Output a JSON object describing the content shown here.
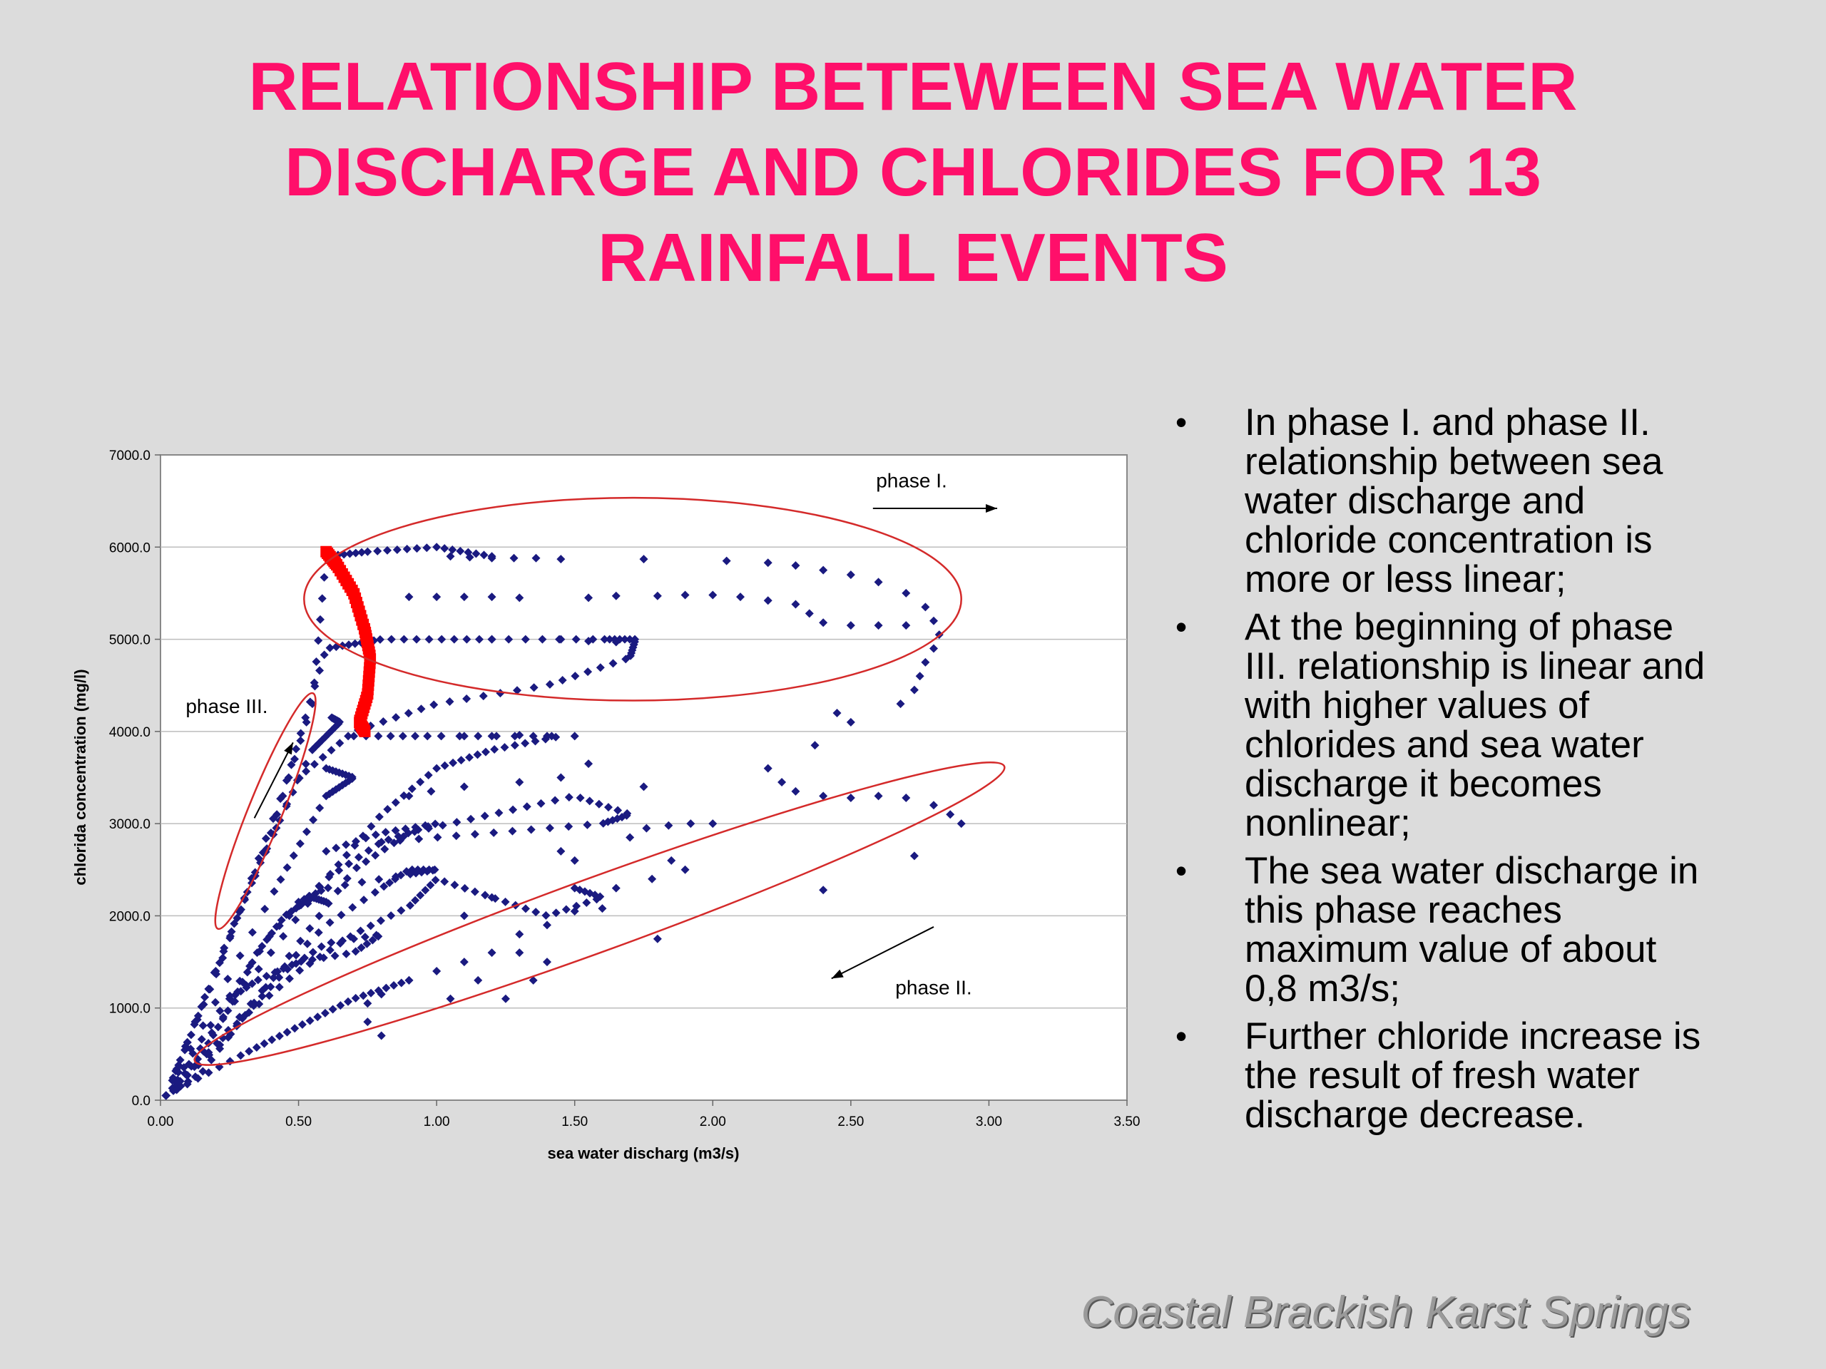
{
  "slide": {
    "title_lines": [
      "RELATIONSHIP BETEWEEN SEA WATER",
      "DISCHARGE AND CHLORIDES FOR 13",
      "RAINFALL EVENTS"
    ],
    "bullets": [
      "In phase I. and phase II. relationship between sea water discharge and chloride concentration is more or less linear;",
      "At the beginning of phase III. relationship is linear and with higher values of chlorides and sea water discharge it becomes nonlinear;",
      "The sea water discharge in this phase reaches maximum value of about 0,8 m3/s;",
      "Further chloride increase is the result of fresh water discharge decrease."
    ],
    "footer": "Coastal Brackish Karst Springs",
    "colors": {
      "title": "#ff0f6a",
      "points": "#1a1a80",
      "highlight": "#ff0000",
      "ellipse": "#d42a2a"
    }
  },
  "chart_data": {
    "type": "scatter",
    "title": "",
    "xlabel": "sea water discharg (m3/s)",
    "ylabel": "chlorida concentration (mg/l)",
    "xlim": [
      0,
      3.5
    ],
    "ylim": [
      0,
      7000
    ],
    "xticks": [
      "0.00",
      "0.50",
      "1.00",
      "1.50",
      "2.00",
      "2.50",
      "3.00",
      "3.50"
    ],
    "yticks": [
      "0.0",
      "1000.0",
      "2000.0",
      "3000.0",
      "4000.0",
      "5000.0",
      "6000.0",
      "7000.0"
    ],
    "grid": "horizontal",
    "annotations": [
      {
        "text": "phase I.",
        "x": 2.72,
        "y": 6650
      },
      {
        "text": "phase II.",
        "x": 2.8,
        "y": 1150
      },
      {
        "text": "phase III.",
        "x": 0.24,
        "y": 4200
      }
    ],
    "arrows": [
      {
        "from": [
          2.58,
          6420
        ],
        "to": [
          3.03,
          6420
        ]
      },
      {
        "from": [
          2.8,
          1880
        ],
        "to": [
          2.43,
          1320
        ]
      },
      {
        "from": [
          0.34,
          3060
        ],
        "to": [
          0.48,
          3880
        ]
      }
    ],
    "ellipses": [
      {
        "center": [
          1.71,
          5435
        ],
        "rx": 1.19,
        "ry": 1100,
        "angle": 0
      },
      {
        "center": [
          1.59,
          2023
        ],
        "rx": 1.56,
        "ry": 400,
        "angle": -20
      },
      {
        "center": [
          0.38,
          3137
        ],
        "rx": 0.46,
        "ry": 185,
        "angle": -68
      }
    ],
    "series": [
      {
        "name": "",
        "color": "#1a1a80",
        "paths": [
          {
            "points": [
              [
                0.02,
                50
              ],
              [
                0.2,
                1400
              ],
              [
                0.4,
                2900
              ],
              [
                0.55,
                4300
              ],
              [
                0.6,
                5900
              ],
              [
                0.75,
                5950
              ],
              [
                1.0,
                6000
              ],
              [
                1.2,
                5900
              ]
            ],
            "n": 50
          },
          {
            "points": [
              [
                0.02,
                50
              ],
              [
                0.22,
                1500
              ],
              [
                0.45,
                3400
              ],
              [
                0.6,
                4900
              ],
              [
                0.8,
                5000
              ],
              [
                1.2,
                5000
              ]
            ],
            "n": 45
          },
          {
            "points": [
              [
                0.02,
                50
              ],
              [
                0.25,
                1800
              ],
              [
                0.5,
                3500
              ],
              [
                0.7,
                4000
              ],
              [
                1.0,
                4300
              ],
              [
                1.4,
                4500
              ],
              [
                1.7,
                4800
              ],
              [
                1.72,
                5000
              ],
              [
                1.6,
                5000
              ],
              [
                1.2,
                5000
              ]
            ],
            "n": 60
          },
          {
            "points": [
              [
                0.02,
                50
              ],
              [
                0.3,
                1200
              ],
              [
                0.6,
                2400
              ],
              [
                0.8,
                3100
              ],
              [
                1.0,
                3600
              ],
              [
                1.2,
                3800
              ],
              [
                1.45,
                3950
              ],
              [
                1.0,
                3950
              ],
              [
                0.7,
                3950
              ]
            ],
            "n": 55
          },
          {
            "points": [
              [
                0.02,
                50
              ],
              [
                0.25,
                700
              ],
              [
                0.5,
                1700
              ],
              [
                0.7,
                2500
              ],
              [
                0.9,
                2900
              ],
              [
                1.2,
                3100
              ],
              [
                1.5,
                3300
              ],
              [
                1.7,
                3100
              ],
              [
                1.6,
                3000
              ],
              [
                1.2,
                2900
              ],
              [
                0.8,
                2800
              ]
            ],
            "n": 60
          },
          {
            "points": [
              [
                0.02,
                50
              ],
              [
                0.2,
                600
              ],
              [
                0.4,
                1300
              ],
              [
                0.6,
                1900
              ],
              [
                0.8,
                2300
              ],
              [
                0.9,
                2500
              ],
              [
                1.0,
                2500
              ],
              [
                0.9,
                2450
              ],
              [
                0.6,
                2300
              ],
              [
                0.5,
                2150
              ]
            ],
            "n": 45
          },
          {
            "points": [
              [
                0.02,
                50
              ],
              [
                0.2,
                900
              ],
              [
                0.4,
                1800
              ],
              [
                0.6,
                2400
              ],
              [
                0.8,
                2800
              ],
              [
                1.0,
                3000
              ],
              [
                0.8,
                2900
              ],
              [
                0.6,
                2700
              ]
            ],
            "n": 40
          },
          {
            "points": [
              [
                0.02,
                50
              ],
              [
                0.3,
                900
              ],
              [
                0.5,
                1400
              ],
              [
                0.7,
                1800
              ],
              [
                0.9,
                2100
              ],
              [
                1.0,
                2400
              ],
              [
                1.2,
                2200
              ],
              [
                1.4,
                2000
              ],
              [
                1.6,
                2200
              ],
              [
                1.5,
                2300
              ]
            ],
            "n": 50
          },
          {
            "points": [
              [
                0.02,
                50
              ],
              [
                0.15,
                300
              ],
              [
                0.3,
                900
              ],
              [
                0.45,
                1400
              ],
              [
                0.6,
                1700
              ],
              [
                0.8,
                1800
              ],
              [
                0.7,
                1600
              ],
              [
                0.5,
                1500
              ],
              [
                0.35,
                1300
              ],
              [
                0.25,
                1100
              ]
            ],
            "n": 45
          },
          {
            "points": [
              [
                0.02,
                50
              ],
              [
                0.15,
                500
              ],
              [
                0.25,
                1000
              ],
              [
                0.35,
                1600
              ],
              [
                0.45,
                2000
              ],
              [
                0.55,
                2200
              ],
              [
                0.6,
                2150
              ]
            ],
            "n": 35
          },
          {
            "points": [
              [
                0.02,
                50
              ],
              [
                0.3,
                500
              ],
              [
                0.5,
                800
              ],
              [
                0.7,
                1100
              ],
              [
                0.9,
                1300
              ]
            ],
            "n": 30
          },
          {
            "points": [
              [
                0.02,
                50
              ],
              [
                0.4,
                2200
              ],
              [
                0.6,
                3300
              ],
              [
                0.7,
                3500
              ],
              [
                0.6,
                3600
              ]
            ],
            "n": 35
          },
          {
            "points": [
              [
                0.02,
                50
              ],
              [
                0.35,
                2500
              ],
              [
                0.55,
                3800
              ],
              [
                0.65,
                4100
              ],
              [
                0.62,
                4150
              ]
            ],
            "n": 35
          }
        ],
        "scatter": [
          [
            1.05,
            5900
          ],
          [
            1.12,
            5890
          ],
          [
            1.2,
            5880
          ],
          [
            1.28,
            5880
          ],
          [
            1.36,
            5880
          ],
          [
            1.45,
            5870
          ],
          [
            1.75,
            5870
          ],
          [
            2.05,
            5850
          ],
          [
            2.2,
            5830
          ],
          [
            2.3,
            5800
          ],
          [
            2.4,
            5750
          ],
          [
            2.5,
            5700
          ],
          [
            2.6,
            5620
          ],
          [
            2.7,
            5500
          ],
          [
            2.77,
            5350
          ],
          [
            2.8,
            5200
          ],
          [
            2.82,
            5050
          ],
          [
            2.8,
            4900
          ],
          [
            2.77,
            4750
          ],
          [
            2.75,
            4600
          ],
          [
            2.73,
            4450
          ],
          [
            2.68,
            4300
          ],
          [
            2.45,
            4200
          ],
          [
            2.5,
            4100
          ],
          [
            2.37,
            3850
          ],
          [
            2.2,
            3600
          ],
          [
            2.25,
            3450
          ],
          [
            2.3,
            3350
          ],
          [
            2.4,
            3300
          ],
          [
            2.5,
            3280
          ],
          [
            2.6,
            3300
          ],
          [
            2.7,
            3280
          ],
          [
            2.8,
            3200
          ],
          [
            2.86,
            3100
          ],
          [
            2.9,
            3000
          ],
          [
            2.73,
            2650
          ],
          [
            2.4,
            2280
          ],
          [
            2.0,
            3000
          ],
          [
            1.92,
            3000
          ],
          [
            1.84,
            2980
          ],
          [
            1.76,
            2950
          ],
          [
            1.7,
            2850
          ],
          [
            1.85,
            2600
          ],
          [
            1.9,
            2500
          ],
          [
            1.78,
            2400
          ],
          [
            1.65,
            2300
          ],
          [
            1.75,
            3400
          ],
          [
            1.55,
            3650
          ],
          [
            1.45,
            3500
          ],
          [
            1.3,
            3450
          ],
          [
            1.1,
            3400
          ],
          [
            0.98,
            3350
          ],
          [
            0.9,
            3300
          ],
          [
            1.45,
            5000
          ],
          [
            1.55,
            4980
          ],
          [
            1.65,
            4970
          ],
          [
            1.55,
            5450
          ],
          [
            1.65,
            5470
          ],
          [
            1.8,
            5470
          ],
          [
            1.9,
            5480
          ],
          [
            2.0,
            5480
          ],
          [
            2.1,
            5460
          ],
          [
            2.2,
            5420
          ],
          [
            2.3,
            5380
          ],
          [
            2.35,
            5280
          ],
          [
            2.4,
            5180
          ],
          [
            2.5,
            5150
          ],
          [
            2.6,
            5150
          ],
          [
            2.7,
            5150
          ],
          [
            1.3,
            5450
          ],
          [
            1.2,
            5460
          ],
          [
            1.1,
            5460
          ],
          [
            1.0,
            5460
          ],
          [
            0.9,
            5460
          ],
          [
            1.5,
            3950
          ],
          [
            1.4,
            3950
          ],
          [
            1.3,
            3960
          ],
          [
            1.2,
            3950
          ],
          [
            1.1,
            3950
          ],
          [
            1.6,
            2080
          ],
          [
            1.5,
            2050
          ],
          [
            1.4,
            1900
          ],
          [
            1.3,
            1800
          ],
          [
            1.2,
            1600
          ],
          [
            1.1,
            1500
          ],
          [
            1.0,
            1400
          ],
          [
            0.9,
            1300
          ],
          [
            0.8,
            1150
          ],
          [
            0.75,
            850
          ],
          [
            0.8,
            700
          ],
          [
            1.05,
            1100
          ],
          [
            1.15,
            1300
          ],
          [
            1.25,
            1100
          ],
          [
            1.35,
            1300
          ],
          [
            1.4,
            1500
          ],
          [
            1.3,
            1600
          ],
          [
            1.8,
            1750
          ],
          [
            1.5,
            2600
          ],
          [
            1.45,
            2700
          ],
          [
            1.2,
            2200
          ],
          [
            1.1,
            2000
          ],
          [
            0.75,
            1050
          ]
        ]
      },
      {
        "name": "",
        "color": "#ff0000",
        "paths": [
          {
            "points": [
              [
                0.6,
                5950
              ],
              [
                0.64,
                5800
              ],
              [
                0.7,
                5500
              ],
              [
                0.74,
                5100
              ],
              [
                0.76,
                4800
              ],
              [
                0.75,
                4400
              ],
              [
                0.72,
                4100
              ],
              [
                0.74,
                4000
              ]
            ],
            "n": 60
          }
        ]
      }
    ]
  }
}
